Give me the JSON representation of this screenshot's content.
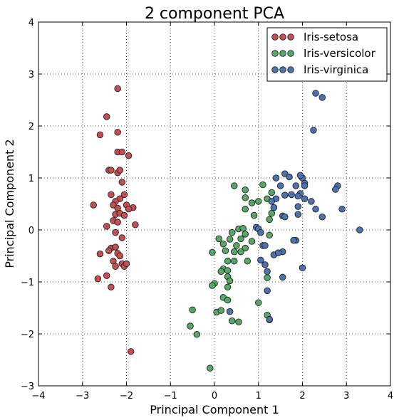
{
  "chart_data": {
    "type": "scatter",
    "title": "2 component PCA",
    "xlabel": "Principal Component 1",
    "ylabel": "Principal Component 2",
    "xlim": [
      -4,
      4
    ],
    "ylim": [
      -3,
      4
    ],
    "xticks": [
      -4,
      -3,
      -2,
      -1,
      0,
      1,
      2,
      3,
      4
    ],
    "yticks": [
      -3,
      -2,
      -1,
      0,
      1,
      2,
      3,
      4
    ],
    "xtick_labels": [
      "−4",
      "−3",
      "−2",
      "−1",
      "0",
      "1",
      "2",
      "3",
      "4"
    ],
    "ytick_labels": [
      "−3",
      "−2",
      "−1",
      "0",
      "1",
      "2",
      "3",
      "4"
    ],
    "grid": true,
    "legend_position": "top-right",
    "series": [
      {
        "name": "Iris-setosa",
        "color": "#c44e52",
        "points": [
          [
            -2.2,
            2.72
          ],
          [
            -2.45,
            2.18
          ],
          [
            -2.6,
            1.83
          ],
          [
            -2.2,
            1.88
          ],
          [
            -2.2,
            1.5
          ],
          [
            -2.1,
            1.5
          ],
          [
            -1.95,
            1.43
          ],
          [
            -2.4,
            1.15
          ],
          [
            -2.35,
            1.15
          ],
          [
            -2.2,
            1.1
          ],
          [
            -2.15,
            1.15
          ],
          [
            -2.1,
            0.92
          ],
          [
            -2.05,
            0.68
          ],
          [
            -2.35,
            0.68
          ],
          [
            -2.15,
            0.6
          ],
          [
            -2.25,
            0.55
          ],
          [
            -2.3,
            0.48
          ],
          [
            -2.75,
            0.48
          ],
          [
            -2.0,
            0.48
          ],
          [
            -1.85,
            0.43
          ],
          [
            -2.2,
            0.42
          ],
          [
            -1.95,
            0.4
          ],
          [
            -2.25,
            0.3
          ],
          [
            -2.15,
            0.32
          ],
          [
            -2.05,
            0.28
          ],
          [
            -2.3,
            0.18
          ],
          [
            -2.2,
            0.15
          ],
          [
            -1.8,
            0.1
          ],
          [
            -2.45,
            0.07
          ],
          [
            -2.25,
            -0.05
          ],
          [
            -2.1,
            -0.15
          ],
          [
            -2.6,
            -0.46
          ],
          [
            -2.35,
            -0.35
          ],
          [
            -2.25,
            -0.33
          ],
          [
            -2.4,
            -0.4
          ],
          [
            -2.2,
            -0.45
          ],
          [
            -2.15,
            -0.5
          ],
          [
            -2.3,
            -0.6
          ],
          [
            -2.1,
            -0.65
          ],
          [
            -2.25,
            -0.7
          ],
          [
            -2.05,
            -0.7
          ],
          [
            -2.0,
            -0.65
          ],
          [
            -2.45,
            -0.88
          ],
          [
            -2.65,
            -0.94
          ],
          [
            -2.35,
            -1.1
          ],
          [
            -1.9,
            -2.34
          ]
        ]
      },
      {
        "name": "Iris-versicolor",
        "color": "#55a868",
        "points": [
          [
            0.45,
            0.85
          ],
          [
            1.1,
            0.87
          ],
          [
            0.7,
            0.77
          ],
          [
            1.3,
            0.72
          ],
          [
            1.2,
            0.6
          ],
          [
            0.7,
            0.62
          ],
          [
            1.0,
            0.55
          ],
          [
            0.85,
            0.52
          ],
          [
            0.7,
            0.4
          ],
          [
            1.3,
            0.32
          ],
          [
            0.9,
            0.28
          ],
          [
            1.25,
            0.2
          ],
          [
            0.55,
            0.02
          ],
          [
            0.65,
            0.03
          ],
          [
            0.4,
            -0.05
          ],
          [
            0.7,
            -0.08
          ],
          [
            1.25,
            -0.1
          ],
          [
            0.1,
            -0.17
          ],
          [
            0.35,
            -0.18
          ],
          [
            0.6,
            -0.17
          ],
          [
            0.2,
            -0.27
          ],
          [
            0.5,
            -0.3
          ],
          [
            0.85,
            -0.22
          ],
          [
            0.7,
            -0.35
          ],
          [
            -0.05,
            -0.43
          ],
          [
            0.25,
            -0.4
          ],
          [
            0.45,
            -0.42
          ],
          [
            0.6,
            -0.42
          ],
          [
            0.3,
            -0.6
          ],
          [
            0.45,
            -0.6
          ],
          [
            0.75,
            -0.6
          ],
          [
            0.2,
            -0.75
          ],
          [
            0.3,
            -0.78
          ],
          [
            0.15,
            -0.8
          ],
          [
            1.2,
            -0.92
          ],
          [
            0.3,
            -0.9
          ],
          [
            0.35,
            -0.98
          ],
          [
            0.0,
            -1.03
          ],
          [
            -0.05,
            -1.07
          ],
          [
            0.3,
            -1.1
          ],
          [
            0.2,
            -1.3
          ],
          [
            0.3,
            -1.35
          ],
          [
            1.0,
            -1.4
          ],
          [
            0.05,
            -1.58
          ],
          [
            0.15,
            -1.55
          ],
          [
            1.2,
            -1.64
          ],
          [
            1.25,
            -1.73
          ],
          [
            -0.5,
            -1.54
          ],
          [
            0.4,
            -1.75
          ],
          [
            0.55,
            -1.77
          ],
          [
            -0.55,
            -1.85
          ],
          [
            -0.4,
            -2.01
          ],
          [
            -0.1,
            -2.66
          ]
        ]
      },
      {
        "name": "Iris-virginica",
        "color": "#4c72b0",
        "points": [
          [
            2.3,
            2.63
          ],
          [
            2.45,
            2.55
          ],
          [
            2.25,
            1.92
          ],
          [
            1.6,
            1.08
          ],
          [
            1.7,
            1.02
          ],
          [
            1.4,
            1.0
          ],
          [
            2.0,
            1.0
          ],
          [
            1.95,
            1.05
          ],
          [
            2.05,
            0.9
          ],
          [
            2.05,
            0.85
          ],
          [
            1.85,
            0.85
          ],
          [
            1.5,
            0.85
          ],
          [
            2.8,
            0.85
          ],
          [
            2.75,
            0.78
          ],
          [
            1.95,
            0.7
          ],
          [
            1.9,
            0.65
          ],
          [
            1.75,
            0.68
          ],
          [
            1.6,
            0.67
          ],
          [
            2.05,
            0.6
          ],
          [
            2.2,
            0.55
          ],
          [
            1.4,
            0.6
          ],
          [
            1.3,
            0.55
          ],
          [
            1.9,
            0.45
          ],
          [
            1.35,
            0.43
          ],
          [
            2.9,
            0.4
          ],
          [
            2.3,
            0.4
          ],
          [
            1.9,
            0.3
          ],
          [
            1.55,
            0.27
          ],
          [
            2.45,
            0.25
          ],
          [
            1.6,
            0.25
          ],
          [
            3.3,
            0.0
          ],
          [
            0.95,
            0.05
          ],
          [
            1.0,
            0.02
          ],
          [
            1.05,
            -0.05
          ],
          [
            1.1,
            -0.3
          ],
          [
            1.15,
            -0.3
          ],
          [
            1.85,
            -0.2
          ],
          [
            1.8,
            -0.2
          ],
          [
            1.55,
            -0.42
          ],
          [
            1.35,
            -0.48
          ],
          [
            1.45,
            -0.44
          ],
          [
            1.05,
            -0.58
          ],
          [
            1.15,
            -0.67
          ],
          [
            2.0,
            -0.73
          ],
          [
            1.2,
            -0.8
          ],
          [
            1.55,
            -0.91
          ],
          [
            0.35,
            -1.57
          ],
          [
            1.2,
            -1.17
          ],
          [
            1.25,
            -1.72
          ]
        ]
      }
    ]
  }
}
